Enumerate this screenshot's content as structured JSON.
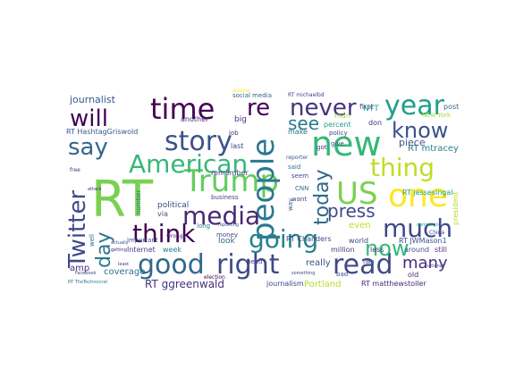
{
  "words": [
    {
      "text": "RT",
      "color": "#7ad151"
    },
    {
      "text": "Trump",
      "color": "#65cb5e"
    },
    {
      "text": "people",
      "color": "#2a788e"
    },
    {
      "text": "new",
      "color": "#35b779"
    },
    {
      "text": "time",
      "color": "#440154"
    },
    {
      "text": "US",
      "color": "#7ad151"
    },
    {
      "text": "one",
      "color": "#fde725"
    },
    {
      "text": "story",
      "color": "#3b528b"
    },
    {
      "text": "American",
      "color": "#35b779"
    },
    {
      "text": "media",
      "color": "#482878"
    },
    {
      "text": "good",
      "color": "#31688e"
    },
    {
      "text": "right",
      "color": "#3e4989"
    },
    {
      "text": "going",
      "color": "#26828e"
    },
    {
      "text": "read",
      "color": "#3e4a89"
    },
    {
      "text": "much",
      "color": "#3e4989"
    },
    {
      "text": "thing",
      "color": "#bddf26"
    },
    {
      "text": "year",
      "color": "#1f9e89"
    },
    {
      "text": "never",
      "color": "#46327e"
    },
    {
      "text": "re",
      "color": "#440154"
    },
    {
      "text": "know",
      "color": "#3b528b"
    },
    {
      "text": "will",
      "color": "#440154"
    },
    {
      "text": "say",
      "color": "#31688e"
    },
    {
      "text": "think",
      "color": "#440154"
    },
    {
      "text": "Twitter",
      "color": "#3e4a89"
    },
    {
      "text": "day",
      "color": "#2a788e"
    },
    {
      "text": "today",
      "color": "#31688e"
    },
    {
      "text": "now",
      "color": "#35b779"
    },
    {
      "text": "see",
      "color": "#2a788e"
    },
    {
      "text": "press",
      "color": "#3e4a89"
    },
    {
      "text": "many",
      "color": "#472d7b"
    },
    {
      "text": "journalist",
      "color": "#38598c"
    },
    {
      "text": "social media",
      "color": "#31688e"
    },
    {
      "text": "RT michaelbd",
      "color": "#414487"
    },
    {
      "text": "RT HashtagGriswold",
      "color": "#38598c"
    },
    {
      "text": "RT mtracey",
      "color": "#26828e"
    },
    {
      "text": "RT jessesingal",
      "color": "#1f9e89"
    },
    {
      "text": "RT JWMason1",
      "color": "#3b528b"
    },
    {
      "text": "RT matthewstoller",
      "color": "#482878"
    },
    {
      "text": "RT ggreenwald",
      "color": "#46327e"
    },
    {
      "text": "Portland",
      "color": "#b5de2b"
    },
    {
      "text": "journalism",
      "color": "#414487"
    },
    {
      "text": "really",
      "color": "#3b528b"
    },
    {
      "text": "coverage",
      "color": "#2c728e"
    },
    {
      "text": "amp",
      "color": "#472d7b"
    },
    {
      "text": "Internet",
      "color": "#414487"
    },
    {
      "text": "week",
      "color": "#2a788e"
    },
    {
      "text": "political",
      "color": "#3e4989"
    },
    {
      "text": "business",
      "color": "#414487"
    },
    {
      "text": "remember",
      "color": "#443983"
    },
    {
      "text": "another",
      "color": "#482878"
    },
    {
      "text": "look",
      "color": "#31688e"
    },
    {
      "text": "last",
      "color": "#3e4989"
    },
    {
      "text": "big",
      "color": "#46327e"
    },
    {
      "text": "make",
      "color": "#2c728e"
    },
    {
      "text": "percent",
      "color": "#1f9e89"
    },
    {
      "text": "man",
      "color": "#a0da39"
    },
    {
      "text": "NYT",
      "color": "#1f9e89"
    },
    {
      "text": "piece",
      "color": "#3b528b"
    },
    {
      "text": "don",
      "color": "#46327e"
    },
    {
      "text": "first",
      "color": "#3e4989"
    },
    {
      "text": "post",
      "color": "#31688e"
    },
    {
      "text": "policy",
      "color": "#414487"
    },
    {
      "text": "New York",
      "color": "#a0da39"
    },
    {
      "text": "president",
      "color": "#b5de2b"
    },
    {
      "text": "around",
      "color": "#3b528b"
    },
    {
      "text": "still",
      "color": "#46327e"
    },
    {
      "text": "old",
      "color": "#482878"
    },
    {
      "text": "two",
      "color": "#38598c"
    },
    {
      "text": "less",
      "color": "#46327e"
    },
    {
      "text": "million",
      "color": "#443983"
    },
    {
      "text": "world",
      "color": "#414487"
    },
    {
      "text": "even",
      "color": "#bddf26"
    },
    {
      "text": "want",
      "color": "#414487"
    },
    {
      "text": "said",
      "color": "#2a788e"
    },
    {
      "text": "seem",
      "color": "#3e4989"
    },
    {
      "text": "RT Chanders",
      "color": "#3e4989"
    },
    {
      "text": "money",
      "color": "#414487"
    },
    {
      "text": "via",
      "color": "#3b528b"
    },
    {
      "text": "long",
      "color": "#2c728e"
    },
    {
      "text": "wrong",
      "color": "#482878"
    },
    {
      "text": "important",
      "color": "#3e4a89"
    },
    {
      "text": "number",
      "color": "#2a788e"
    },
    {
      "text": "election",
      "color": "#440154"
    },
    {
      "text": "bad",
      "color": "#3e4989"
    },
    {
      "text": "CNN",
      "color": "#2c728e"
    },
    {
      "text": "way",
      "color": "#38598c"
    },
    {
      "text": "need",
      "color": "#414487"
    },
    {
      "text": "got",
      "color": "#443983"
    },
    {
      "text": "give",
      "color": "#3b528b"
    },
    {
      "text": "job",
      "color": "#46327e"
    },
    {
      "text": "reporter",
      "color": "#38598c"
    },
    {
      "text": "well",
      "color": "#31688e"
    },
    {
      "text": "free",
      "color": "#46327e"
    },
    {
      "text": "China",
      "color": "#3e4989"
    },
    {
      "text": "campaign",
      "color": "#1f9e89"
    },
    {
      "text": "Facebook",
      "color": "#414487"
    },
    {
      "text": "attack",
      "color": "#46327e"
    },
    {
      "text": "reporting",
      "color": "#38598c"
    },
    {
      "text": "Amazon",
      "color": "#fde725"
    },
    {
      "text": "something",
      "color": "#3e4989"
    },
    {
      "text": "least",
      "color": "#46327e"
    },
    {
      "text": "actually",
      "color": "#3b528b"
    },
    {
      "text": "getting",
      "color": "#482878"
    },
    {
      "text": "national",
      "color": "#3e4989"
    },
    {
      "text": "RT TheTechnocrat",
      "color": "#2a788e"
    }
  ]
}
